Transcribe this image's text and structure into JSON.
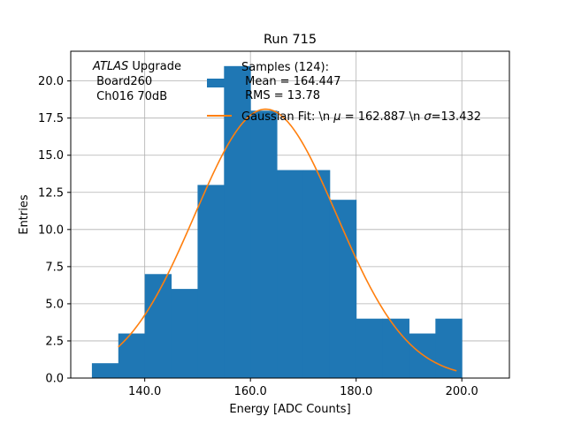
{
  "chart_data": {
    "type": "bar",
    "title": "Run 715",
    "xlabel": "Energy [ADC Counts]",
    "ylabel": "Entries",
    "xlim": [
      126,
      209
    ],
    "ylim": [
      0,
      22
    ],
    "grid": true,
    "x_ticks": [
      140,
      160,
      180,
      200
    ],
    "x_tick_labels": [
      "140.0",
      "160.0",
      "180.0",
      "200.0"
    ],
    "y_ticks": [
      0,
      2.5,
      5,
      7.5,
      10,
      12.5,
      15,
      17.5,
      20
    ],
    "y_tick_labels": [
      "0.0",
      "2.5",
      "5.0",
      "7.5",
      "10.0",
      "12.5",
      "15.0",
      "17.5",
      "20.0"
    ],
    "bin_edges": [
      130,
      135,
      140,
      145,
      150,
      155,
      160,
      165,
      170,
      175,
      180,
      185,
      190,
      195,
      200
    ],
    "counts": [
      1,
      3,
      7,
      6,
      13,
      21,
      18,
      14,
      14,
      12,
      4,
      4,
      3,
      4
    ],
    "bar_color": "#1f77b4",
    "fit": {
      "mu": 162.887,
      "sigma": 13.432,
      "amplitude": 18.1,
      "x_range": [
        135,
        199
      ],
      "color": "#ff7f0e"
    },
    "annotation": {
      "line1_italic": "ATLAS",
      "line1_rest": " Upgrade",
      "line2": " Board260",
      "line3": " Ch016 70dB"
    },
    "legend": {
      "placement": "top-right",
      "hist_line1": "Samples (124):",
      "hist_line2": " Mean = 164.447",
      "hist_line3": " RMS = 13.78",
      "fit_text_prefix": "Gaussian Fit: \\n ",
      "fit_mu_symbol": "μ",
      "fit_mu_value": " = 162.887 \\n ",
      "fit_sigma_symbol": "σ",
      "fit_sigma_value": "=13.432"
    }
  }
}
